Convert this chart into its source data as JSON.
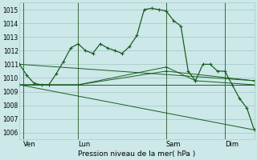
{
  "title": "Pression niveau de la mer( hPa )",
  "bg_color": "#cce8e8",
  "grid_color": "#aacccc",
  "line_color": "#1a5e20",
  "ylim": [
    1005.5,
    1015.5
  ],
  "yticks": [
    1006,
    1007,
    1008,
    1009,
    1010,
    1011,
    1012,
    1013,
    1014,
    1015
  ],
  "xlim": [
    0,
    32
  ],
  "day_labels": [
    "Ven",
    "Lun",
    "Sam",
    "Dim"
  ],
  "day_positions": [
    0.5,
    8,
    20,
    28
  ],
  "vline_positions": [
    0.5,
    8,
    20,
    28
  ],
  "lines": [
    {
      "x": [
        0,
        1,
        2,
        3,
        4,
        5,
        6,
        7,
        8,
        9,
        10,
        11,
        12,
        13,
        14,
        15,
        16,
        17,
        18,
        19,
        20,
        21,
        22,
        23,
        24,
        25,
        26,
        27,
        28,
        29,
        30,
        31,
        32
      ],
      "y": [
        1011.0,
        1010.2,
        1009.6,
        1009.5,
        1009.5,
        1010.3,
        1011.2,
        1012.2,
        1012.5,
        1012.0,
        1011.8,
        1012.5,
        1012.2,
        1012.0,
        1011.8,
        1012.3,
        1013.1,
        1015.0,
        1015.1,
        1015.0,
        1014.9,
        1014.2,
        1013.8,
        1010.5,
        1009.8,
        1011.0,
        1011.0,
        1010.5,
        1010.5,
        1009.5,
        1008.5,
        1007.8,
        1006.2
      ]
    },
    {
      "x": [
        0,
        32
      ],
      "y": [
        1011.0,
        1009.8
      ]
    },
    {
      "x": [
        0,
        32
      ],
      "y": [
        1009.5,
        1009.5
      ]
    },
    {
      "x": [
        0,
        8,
        20,
        32
      ],
      "y": [
        1009.5,
        1009.5,
        1010.5,
        1009.8
      ]
    },
    {
      "x": [
        0,
        8,
        20,
        24,
        32
      ],
      "y": [
        1009.5,
        1009.5,
        1010.8,
        1009.8,
        1009.5
      ]
    },
    {
      "x": [
        0,
        32
      ],
      "y": [
        1009.5,
        1006.2
      ]
    }
  ]
}
